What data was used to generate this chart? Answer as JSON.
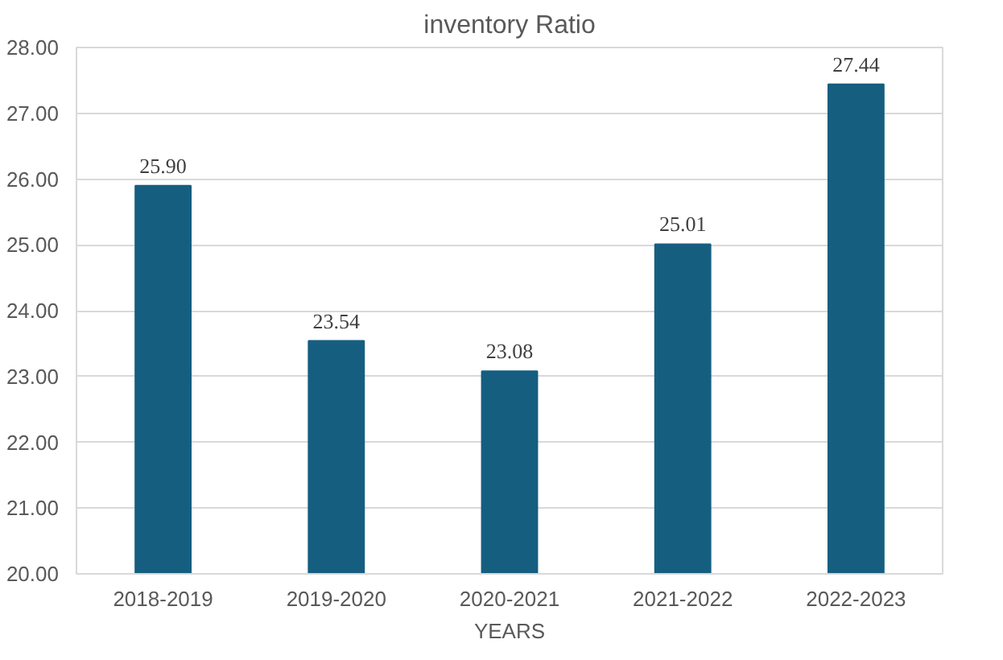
{
  "chart_data": {
    "type": "bar",
    "title": "inventory Ratio",
    "xlabel": "YEARS",
    "categories": [
      "2018-2019",
      "2019-2020",
      "2020-2021",
      "2021-2022",
      "2022-2023"
    ],
    "values": [
      25.9,
      23.54,
      23.08,
      25.01,
      27.44
    ],
    "value_labels": [
      "25.90",
      "23.54",
      "23.08",
      "25.01",
      "27.44"
    ],
    "color": "#165e80",
    "ylim": [
      20,
      28
    ],
    "yticks": [
      {
        "value": 20,
        "label": "20.00"
      },
      {
        "value": 21,
        "label": "21.00"
      },
      {
        "value": 22,
        "label": "22.00"
      },
      {
        "value": 23,
        "label": "23.00"
      },
      {
        "value": 24,
        "label": "24.00"
      },
      {
        "value": 25,
        "label": "25.00"
      },
      {
        "value": 26,
        "label": "26.00"
      },
      {
        "value": 27,
        "label": "27.00"
      },
      {
        "value": 28,
        "label": "28.00"
      }
    ],
    "grid": "y"
  }
}
